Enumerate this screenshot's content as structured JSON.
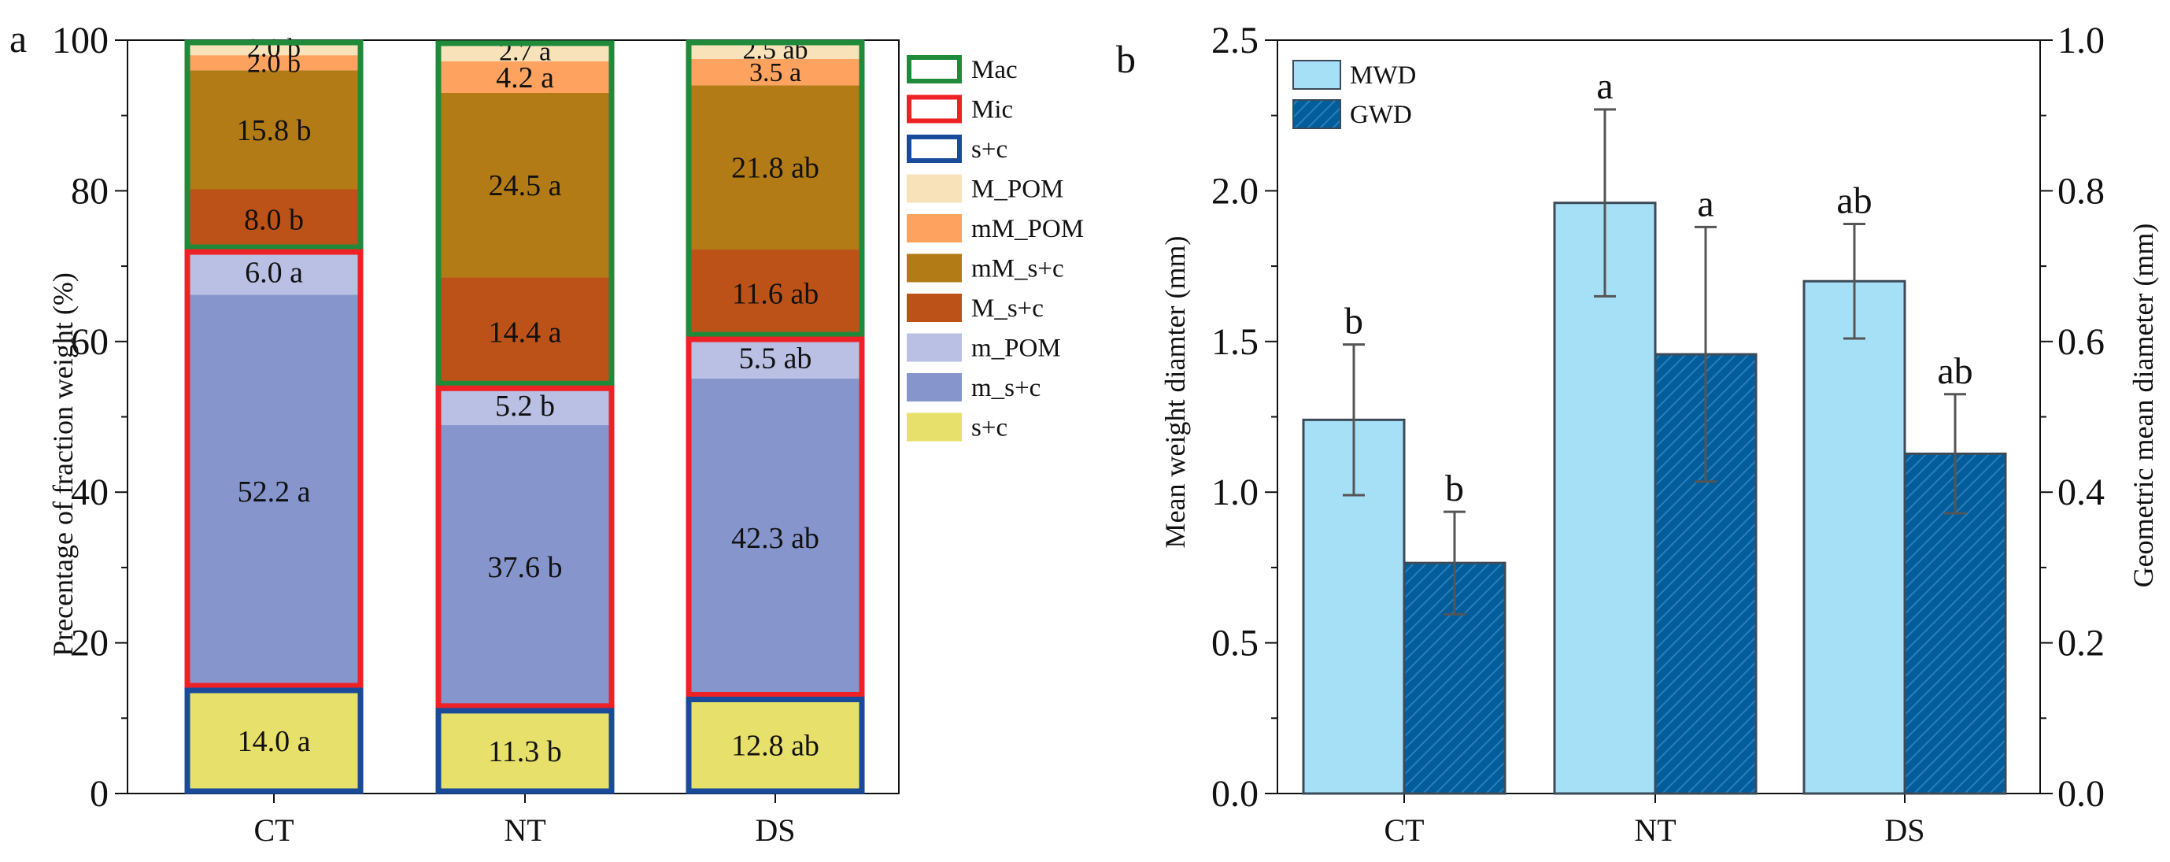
{
  "chart_data": [
    {
      "panel": "a",
      "type": "bar",
      "stacked": true,
      "categories": [
        "CT",
        "NT",
        "DS"
      ],
      "ylabel": "Precentage of  fraction weight (%)",
      "ylim": [
        0,
        100
      ],
      "yticks": [
        0,
        20,
        40,
        60,
        80,
        100
      ],
      "series": [
        {
          "name": "s+c",
          "color": "#e7e06a",
          "values": [
            14.0,
            11.3,
            12.8
          ],
          "labels": [
            "14.0 a",
            "11.3 b",
            "12.8 ab"
          ]
        },
        {
          "name": "m_s+c",
          "color": "#8696cc",
          "values": [
            52.2,
            37.6,
            42.3
          ],
          "labels": [
            "52.2 a",
            "37.6 b",
            "42.3 ab"
          ]
        },
        {
          "name": "m_POM",
          "color": "#b9c0e4",
          "values": [
            6.0,
            5.2,
            5.5
          ],
          "labels": [
            "6.0 a",
            "5.2 b",
            "5.5 ab"
          ]
        },
        {
          "name": "M_s+c",
          "color": "#bd5218",
          "values": [
            8.0,
            14.4,
            11.6
          ],
          "labels": [
            "8.0 b",
            "14.4 a",
            "11.6 ab"
          ]
        },
        {
          "name": "mM_s+c",
          "color": "#b27b16",
          "values": [
            15.8,
            24.5,
            21.8
          ],
          "labels": [
            "15.8 b",
            "24.5 a",
            "21.8 ab"
          ]
        },
        {
          "name": "mM_POM",
          "color": "#fda35f",
          "values": [
            2.0,
            4.2,
            3.5
          ],
          "labels": [
            "2.0 b",
            "4.2 a",
            "3.5 a"
          ]
        },
        {
          "name": "M_POM",
          "color": "#f8e2b9",
          "values": [
            2.0,
            2.7,
            2.5
          ],
          "labels": [
            "2.0 b",
            "2.7 a",
            "2.5 ab"
          ]
        }
      ],
      "groups": [
        {
          "name": "Mac",
          "color": "#1f8a3a",
          "series": [
            "M_s+c",
            "mM_s+c",
            "mM_POM",
            "M_POM"
          ]
        },
        {
          "name": "Mic",
          "color": "#ee2127",
          "series": [
            "m_s+c",
            "m_POM"
          ]
        },
        {
          "name": "s+c",
          "color": "#1a4b9a",
          "series": [
            "s+c"
          ]
        }
      ],
      "legend_order": [
        "Mac",
        "Mic",
        "s+c",
        "M_POM",
        "mM_POM",
        "mM_s+c",
        "M_s+c",
        "m_POM",
        "m_s+c",
        "s+c"
      ],
      "legend_position": "right"
    },
    {
      "panel": "b",
      "type": "bar",
      "categories": [
        "CT",
        "NT",
        "DS"
      ],
      "ylabel": "Mean weight diamter (mm)",
      "y2label": "Geometric mean diameter (mm)",
      "ylim": [
        0,
        2.5
      ],
      "yticks": [
        0.0,
        0.5,
        1.0,
        1.5,
        2.0,
        2.5
      ],
      "y2lim": [
        0,
        1.0
      ],
      "y2ticks": [
        0.0,
        0.2,
        0.4,
        0.6,
        0.8,
        1.0
      ],
      "series": [
        {
          "name": "MWD",
          "axis": "left",
          "color": "#a6e0f6",
          "values": [
            1.24,
            1.96,
            1.7
          ],
          "error": [
            0.25,
            0.31,
            0.19
          ],
          "letters": [
            "b",
            "a",
            "ab"
          ]
        },
        {
          "name": "GWD",
          "axis": "right",
          "color": "#035d9a",
          "values": [
            0.306,
            0.583,
            0.451
          ],
          "error": [
            0.068,
            0.169,
            0.079
          ],
          "letters": [
            "b",
            "a",
            "ab"
          ]
        }
      ],
      "legend_position": "top-left"
    }
  ],
  "panel_labels": [
    "a",
    "b"
  ]
}
